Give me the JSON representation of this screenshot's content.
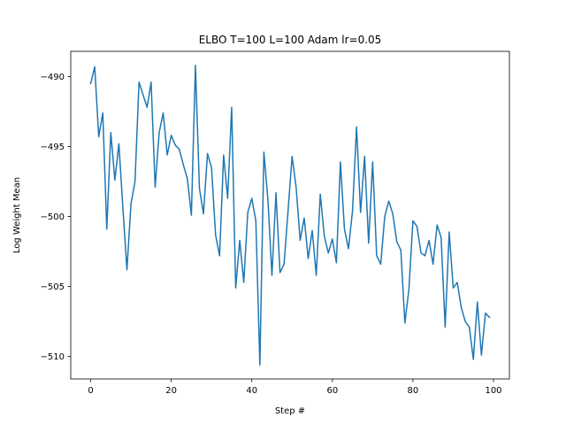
{
  "chart_data": {
    "type": "line",
    "title": "ELBO  T=100 L=100 Adam lr=0.05",
    "xlabel": "Step #",
    "ylabel": "Log Weight Mean",
    "xlim": [
      -4.95,
      103.95
    ],
    "ylim": [
      -511.6,
      -488.2
    ],
    "xticks": [
      0,
      20,
      40,
      60,
      80,
      100
    ],
    "yticks": [
      -490,
      -495,
      -500,
      -505,
      -510
    ],
    "grid": false,
    "line_color": "#1f77b4",
    "series": [
      {
        "values": [
          -490.5,
          -489.3,
          -494.3,
          -492.6,
          -500.9,
          -494.0,
          -497.4,
          -494.8,
          -499.4,
          -503.8,
          -499.1,
          -497.5,
          -490.4,
          -491.3,
          -492.2,
          -490.4,
          -497.9,
          -494.0,
          -492.6,
          -495.6,
          -494.2,
          -494.9,
          -495.2,
          -496.3,
          -497.3,
          -499.9,
          -489.2,
          -498.0,
          -499.8,
          -495.5,
          -496.5,
          -501.3,
          -502.8,
          -495.6,
          -498.7,
          -492.2,
          -505.1,
          -501.7,
          -504.7,
          -499.7,
          -498.7,
          -500.3,
          -510.6,
          -495.4,
          -498.8,
          -504.2,
          -498.3,
          -504.0,
          -503.4,
          -499.6,
          -495.7,
          -497.9,
          -501.7,
          -500.1,
          -503.0,
          -501.0,
          -504.2,
          -498.4,
          -501.4,
          -502.6,
          -501.6,
          -503.3,
          -496.1,
          -500.9,
          -502.3,
          -499.6,
          -493.6,
          -499.7,
          -495.7,
          -501.9,
          -496.1,
          -502.8,
          -503.4,
          -500.0,
          -498.9,
          -499.8,
          -501.8,
          -502.4,
          -507.6,
          -505.2,
          -500.3,
          -500.7,
          -502.6,
          -502.8,
          -501.7,
          -503.4,
          -500.6,
          -501.5,
          -507.9,
          -501.1,
          -505.1,
          -504.7,
          -506.5,
          -507.5,
          -507.9,
          -510.2,
          -506.1,
          -509.9,
          -506.9,
          -507.2
        ]
      }
    ]
  }
}
